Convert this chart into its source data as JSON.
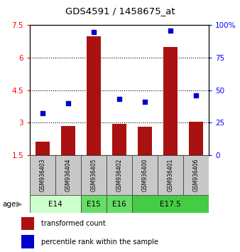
{
  "title": "GDS4591 / 1458675_at",
  "samples": [
    "GSM936403",
    "GSM936404",
    "GSM936405",
    "GSM936402",
    "GSM936400",
    "GSM936401",
    "GSM936406"
  ],
  "transformed_count": [
    2.1,
    2.85,
    7.0,
    2.95,
    2.8,
    6.5,
    3.05
  ],
  "percentile_rank": [
    32,
    40,
    95,
    43,
    41,
    96,
    46
  ],
  "bar_color": "#aa1111",
  "dot_color": "#0000cc",
  "ylim_left": [
    1.5,
    7.5
  ],
  "ylim_right": [
    0,
    100
  ],
  "yticks_left": [
    1.5,
    3.0,
    4.5,
    6.0,
    7.5
  ],
  "yticks_right": [
    0,
    25,
    50,
    75,
    100
  ],
  "ytick_labels_left": [
    "1.5",
    "3",
    "4.5",
    "6",
    "7.5"
  ],
  "ytick_labels_right": [
    "0",
    "25",
    "50",
    "75",
    "100%"
  ],
  "age_groups": [
    {
      "label": "E14",
      "start": 0,
      "end": 2,
      "color": "#ccffcc"
    },
    {
      "label": "E15",
      "start": 2,
      "end": 3,
      "color": "#66dd66"
    },
    {
      "label": "E16",
      "start": 3,
      "end": 4,
      "color": "#66dd66"
    },
    {
      "label": "E17.5",
      "start": 4,
      "end": 7,
      "color": "#44cc44"
    }
  ],
  "legend_bar_label": "transformed count",
  "legend_dot_label": "percentile rank within the sample",
  "bar_width": 0.55,
  "age_label": "age",
  "cell_color": "#c8c8c8",
  "background_color": "#ffffff"
}
